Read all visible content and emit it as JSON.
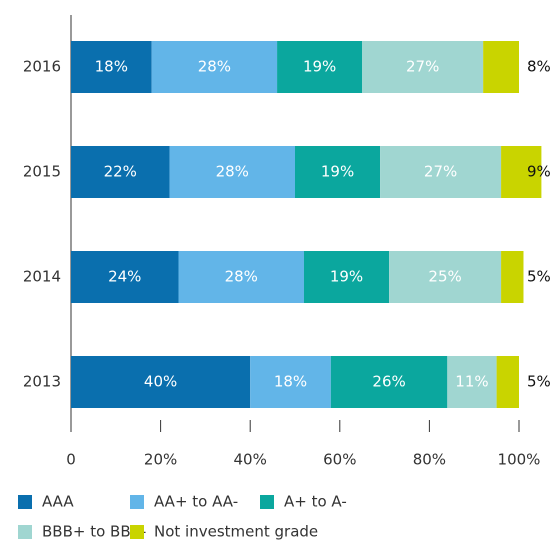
{
  "chart_data": {
    "type": "stacked-bar-horizontal",
    "categories": [
      "2016",
      "2015",
      "2014",
      "2013"
    ],
    "series": [
      {
        "name": "AAA",
        "color": "#0a6fae",
        "values": [
          18,
          22,
          24,
          40
        ],
        "value_labels": [
          "18%",
          "22%",
          "24%",
          "40%"
        ]
      },
      {
        "name": "AA+ to AA-",
        "color": "#62b5e8",
        "values": [
          28,
          28,
          28,
          18
        ],
        "value_labels": [
          "28%",
          "28%",
          "28%",
          "18%"
        ]
      },
      {
        "name": "A+ to A-",
        "color": "#0ba79e",
        "values": [
          19,
          19,
          19,
          26
        ],
        "value_labels": [
          "19%",
          "19%",
          "19%",
          "26%"
        ]
      },
      {
        "name": "BBB+ to BBB-",
        "color": "#a0d6d1",
        "values": [
          27,
          27,
          25,
          11
        ],
        "value_labels": [
          "27%",
          "27%",
          "25%",
          "11%"
        ]
      },
      {
        "name": "Not investment grade",
        "color": "#c9d400",
        "values": [
          8,
          9,
          5,
          5
        ],
        "value_labels": [
          "8%",
          "9%",
          "5%",
          "5%"
        ]
      }
    ],
    "xlim": [
      0,
      100
    ],
    "xticks": [
      0,
      {
        "value": 20,
        "label": "20%"
      },
      {
        "value": 40,
        "label": "40%"
      },
      {
        "value": 60,
        "label": "60%"
      },
      {
        "value": 80,
        "label": "80%"
      },
      {
        "value": 100,
        "label": "100%"
      }
    ]
  }
}
